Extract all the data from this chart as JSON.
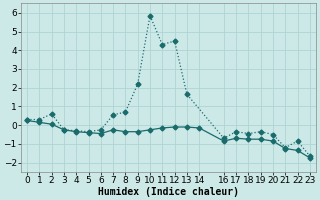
{
  "xlabel": "Humidex (Indice chaleur)",
  "background_color": "#cce9e8",
  "grid_color": "#afd4d3",
  "line_color": "#1a6b6b",
  "ylim": [
    -2.5,
    6.5
  ],
  "xlim": [
    -0.5,
    23.5
  ],
  "yticks": [
    -2,
    -1,
    0,
    1,
    2,
    3,
    4,
    5,
    6
  ],
  "xticks": [
    0,
    1,
    2,
    3,
    4,
    5,
    6,
    7,
    8,
    9,
    10,
    11,
    12,
    13,
    14,
    16,
    17,
    18,
    19,
    20,
    21,
    22,
    23
  ],
  "xtick_labels": [
    "0",
    "1",
    "2",
    "3",
    "4",
    "5",
    "6",
    "7",
    "8",
    "9",
    "10",
    "11",
    "12",
    "13",
    "14",
    "16",
    "17",
    "18",
    "19",
    "20",
    "21",
    "22",
    "23"
  ],
  "series1_x": [
    0,
    1,
    2,
    3,
    4,
    5,
    6,
    7,
    8,
    9,
    10,
    11,
    12,
    13,
    16,
    17,
    18,
    19,
    20,
    21,
    22,
    23
  ],
  "series1_y": [
    0.3,
    0.3,
    0.6,
    -0.25,
    -0.3,
    -0.35,
    -0.25,
    0.55,
    0.7,
    2.2,
    5.85,
    4.3,
    4.5,
    1.65,
    -0.7,
    -0.35,
    -0.45,
    -0.35,
    -0.5,
    -1.2,
    -0.85,
    -1.65
  ],
  "series2_x": [
    0,
    1,
    2,
    3,
    4,
    5,
    6,
    7,
    8,
    9,
    10,
    11,
    12,
    13,
    14,
    16,
    17,
    18,
    19,
    20,
    21,
    22,
    23
  ],
  "series2_y": [
    0.25,
    0.15,
    0.05,
    -0.25,
    -0.35,
    -0.4,
    -0.45,
    -0.25,
    -0.35,
    -0.35,
    -0.25,
    -0.15,
    -0.1,
    -0.1,
    -0.15,
    -0.85,
    -0.7,
    -0.75,
    -0.75,
    -0.85,
    -1.25,
    -1.35,
    -1.75
  ],
  "marker_size": 2.5,
  "linewidth": 0.9,
  "font_size_label": 7,
  "font_size_tick": 6.5
}
